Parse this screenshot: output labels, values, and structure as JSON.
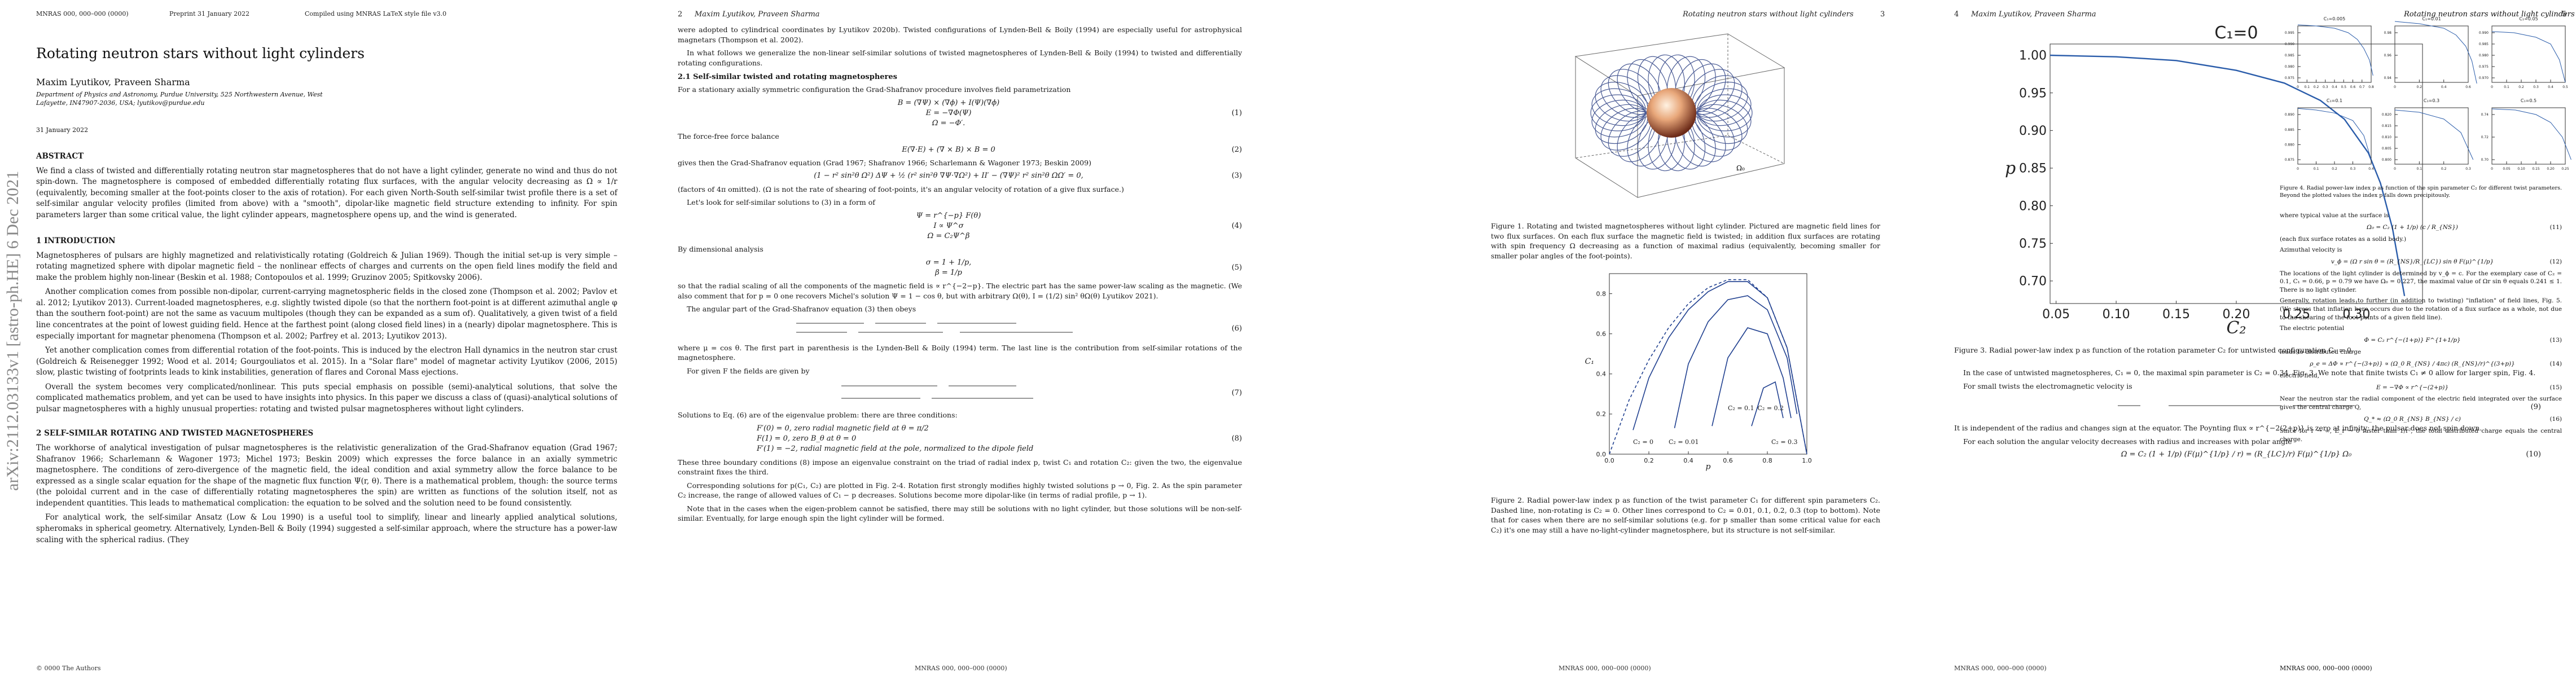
{
  "arxiv_stamp": "arXiv:2112.03133v1  [astro-ph.HE]  6 Dec 2021",
  "p1": {
    "header_left": "MNRAS 000, 000–000 (0000)",
    "header_mid": "Preprint 31 January 2022",
    "header_right": "Compiled using MNRAS LaTeX style file v3.0",
    "title": "Rotating neutron stars without light cylinders",
    "authors": "Maxim Lyutikov, Praveen Sharma",
    "affil": "Department of Physics and Astronomy, Purdue University, 525 Northwestern Avenue, West Lafayette, IN47907-2036, USA; lyutikov@purdue.edu",
    "date": "31 January 2022",
    "abstract_head": "ABSTRACT",
    "abstract": "We find a class of twisted and differentially rotating neutron star magnetospheres that do not have a light cylinder, generate no wind and thus do not spin-down. The magnetosphere is composed of embedded differentially rotating flux surfaces, with the angular velocity decreasing as Ω ∝ 1/r (equivalently, becoming smaller at the foot-points closer to the axis of rotation). For each given North-South self-similar twist profile there is a set of self-similar angular velocity profiles (limited from above) with a \"smooth\", dipolar-like magnetic field structure extending to infinity. For spin parameters larger than some critical value, the light cylinder appears, magnetosphere opens up, and the wind is generated.",
    "sec1": "1 INTRODUCTION",
    "intro": [
      "Magnetospheres of pulsars are highly magnetized and relativistically rotating (Goldreich & Julian 1969). Though the initial set-up is very simple – rotating magnetized sphere with dipolar magnetic field – the nonlinear effects of charges and currents on the open field lines modify the field and make the problem highly non-linear (Beskin et al. 1988; Contopoulos et al. 1999; Gruzinov 2005; Spitkovsky 2006).",
      "Another complication comes from possible non-dipolar, current-carrying magnetospheric fields in the closed zone (Thompson et al. 2002; Pavlov et al. 2012; Lyutikov 2013). Current-loaded magnetospheres, e.g. slightly twisted dipole (so that the northern foot-point is at different azimuthal angle φ than the southern foot-point) are not the same as vacuum multipoles (though they can be expanded as a sum of). Qualitatively, a given twist of a field line concentrates at the point of lowest guiding field. Hence at the farthest point (along closed field lines) in a (nearly) dipolar magnetosphere. This is especially important for magnetar phenomena (Thompson et al. 2002; Parfrey et al. 2013; Lyutikov 2013).",
      "Yet another complication comes from differential rotation of the foot-points. This is induced by the electron Hall dynamics in the neutron star crust (Goldreich & Reisenegger 1992; Wood et al. 2014; Gourgouliatos et al. 2015). In a \"Solar flare\" model of magnetar activity Lyutikov (2006, 2015) slow, plastic twisting of footprints leads to kink instabilities, generation of flares and Coronal Mass ejections.",
      "Overall the system becomes very complicated/nonlinear. This puts special emphasis on possible (semi)-analytical solutions, that solve the complicated mathematics problem, and yet can be used to have insights into physics. In this paper we discuss a class of (quasi)-analytical solutions of pulsar magnetospheres with a highly unusual properties: rotating and twisted pulsar magnetospheres without light cylinders."
    ],
    "sec2": "2 SELF-SIMILAR ROTATING AND TWISTED MAGNETOSPHERES",
    "sec2_text": [
      "The workhorse of analytical investigation of pulsar magnetospheres is the relativistic generalization of the Grad-Shafranov equation (Grad 1967; Shafranov 1966; Scharlemann & Wagoner 1973; Michel 1973; Beskin 2009) which expresses the force balance in an axially symmetric magnetosphere. The conditions of zero-divergence of the magnetic field, the ideal condition and axial symmetry allow the force balance to be expressed as a single scalar equation for the shape of the magnetic flux function Ψ(r, θ). There is a mathematical problem, though: the source terms (the poloidal current and in the case of differentially rotating magnetospheres the spin) are written as functions of the solution itself, not as independent quantities. This leads to mathematical complication: the equation to be solved and the solution need to be found consistently.",
      "For analytical work, the self-similar Ansatz (Low & Lou 1990) is a useful tool to simplify, linear and linearly applied analytical solutions, spheromaks in spherical geometry. Alternatively, Lynden-Bell & Boily (1994) suggested a self-similar approach, where the structure has a power-law scaling with the spherical radius. (They"
    ],
    "footer": "© 0000 The Authors"
  },
  "p2": {
    "header_num": "2",
    "header_auth": "Maxim Lyutikov, Praveen Sharma",
    "intro": [
      "were adopted to cylindrical coordinates by Lyutikov 2020b). Twisted configurations of Lynden-Bell & Boily (1994) are especially useful for astrophysical magnetars (Thompson et al. 2002).",
      "In what follows we generalize the non-linear self-similar solutions of twisted magnetospheres of Lynden-Bell & Boily (1994) to twisted and differentially rotating configurations."
    ],
    "sub21": "2.1 Self-similar twisted and rotating magnetospheres",
    "t1": "For a stationary axially symmetric configuration the Grad-Shafranov procedure involves field parametrization",
    "eq1": [
      "B = (∇Ψ) × (∇ϕ) + I(Ψ)(∇ϕ)",
      "E = −∇Φ(Ψ)",
      "Ω = −Φ′."
    ],
    "eq1n": "(1)",
    "t2": "The force-free force balance",
    "eq2": "E(∇·E) + (∇ × B) × B = 0",
    "eq2n": "(2)",
    "t3": "gives then the Grad-Shafranov equation (Grad 1967; Shafranov 1966; Scharlemann & Wagoner 1973; Beskin 2009)",
    "eq3": "(1 − r² sin²θ Ω²) ΔΨ + ½ (r² sin²θ ∇Ψ·∇Ω²) + II′ − (∇Ψ)² r² sin²θ ΩΩ′ = 0,",
    "eq3n": "(3)",
    "t4": "(factors of 4π omitted). (Ω is not the rate of shearing of foot-points, it's an angular velocity of rotation of a give flux surface.)",
    "t5": "Let's look for self-similar solutions to (3) in a form of",
    "eq4": [
      "Ψ = r^{−p} F(θ)",
      "I ∝ Ψ^σ",
      "Ω = C₂Ψ^β"
    ],
    "eq4n": "(4)",
    "t6": "By dimensional analysis",
    "eq5": [
      "σ = 1 + 1/p,",
      "β = 1/p"
    ],
    "eq5n": "(5)",
    "t7": "so that the radial scaling of all the components of the magnetic field is ∝ r^{−2−p}. The electric part has the same power-law scaling as the magnetic. (We also comment that for p = 0 one recovers Michel's solution Ψ = 1 − cos θ, but with arbitrary Ω(θ), I = (1/2) sin² θΩ(θ) Lyutikov 2021).",
    "t8": "The angular part of the Grad-Shafranov equation (3) then obeys",
    "eq6n": "(6)",
    "t9": "where μ = cos θ. The first part in parenthesis is the Lynden-Bell & Boily (1994) term. The last line is the contribution from self-similar rotations of the magnetosphere.",
    "t10": "For given F the fields are given by",
    "eq7n": "(7)",
    "t11": "Solutions to Eq. (6) are of the eigenvalue problem: there are three conditions:",
    "eq8": [
      "F′(0) = 0, zero radial magnetic field at θ = π/2",
      "F(1) = 0, zero   B_θ at θ = 0",
      "F′(1) = −2, radial magnetic field at the pole, normalized to the dipole field"
    ],
    "eq8n": "(8)",
    "t12": "These three boundary conditions (8) impose an eigenvalue constraint on the triad of radial index p, twist C₁ and rotation C₂: given the two, the eigenvalue constraint fixes the third.",
    "t13": "Corresponding solutions for p(C₁, C₂) are plotted in Fig. 2-4. Rotation first strongly modifies highly twisted solutions p → 0, Fig. 2. As the spin parameter C₂ increase, the range of allowed values of C₁ − p decreases. Solutions become more dipolar-like (in terms of radial profile, p → 1).",
    "t14": "Note that in the cases when the eigen-problem cannot be satisfied, there may still be solutions with no light cylinder, but those solutions will be non-self-similar. Eventually, for large enough spin the light cylinder will be formed.",
    "footer": "MNRAS 000, 000–000 (0000)"
  },
  "p3": {
    "header_title": "Rotating neutron stars without light cylinders",
    "header_num": "3",
    "fig1_label": "Ω₀",
    "fig1_cap": "Figure 1. Rotating and twisted magnetospheres without light cylinder. Pictured are magnetic field lines for two flux surfaces. On each flux surface the magnetic field is twisted; in addition flux surfaces are rotating with spin frequency Ω decreasing as a function of maximal radius (equivalently, becoming smaller for smaller polar angles of the foot-points).",
    "fig2_cap": "Figure 2. Radial power-law index p as function of the twist parameter C₁ for different spin parameters C₂. Dashed line, non-rotating is C₂ = 0. Other lines correspond to C₂ = 0.01, 0.1, 0.2, 0.3 (top to bottom). Note that for cases when there are no self-similar solutions (e.g. for p smaller than some critical value for each C₂) it's one may still a have no-light-cylinder magnetosphere, but its structure is not self-similar.",
    "footer": "MNRAS 000, 000–000 (0000)"
  },
  "p4": {
    "header_num": "4",
    "header_auth": "Maxim Lyutikov, Praveen Sharma",
    "fig3_cap": "Figure 3. Radial power-law index p as function of the rotation parameter C₂ for untwisted configuration C₁ = 0.",
    "t1": "In the case of untwisted magnetospheres, C₁ = 0, the maximal spin parameter is C₂ = 0.34, Fig. 3. We note that finite twists C₁ ≠ 0 allow for larger spin, Fig. 4.",
    "t2": "For small twists the electromagnetic velocity is",
    "eq9n": "(9)",
    "t3": "It is independent of the radius and changes sign at the equator. The Poynting flux ∝ r^{−2(2+p)} is zero at infinity: the pulsar does not spin down.",
    "t4": "For each solution the angular velocity decreases with radius and increases with polar angle",
    "eq10": "Ω = C₂ (1 + 1/p) (F(μ)^{1/p} / r) = (R_{LC}/r) F(μ)^{1/p} Ω₀",
    "eq10n": "(10)",
    "footer": "MNRAS 000, 000–000 (0000)"
  },
  "p5": {
    "header_title": "Rotating neutron stars without light cylinders",
    "header_num": "5",
    "fig4_cap": "Figure 4. Radial power-law index p as function of the spin parameter C₂ for different twist parameters. Beyond the plotted values the index p falls down precipitously.",
    "t1": "where typical value at the surface is",
    "eq11": "Ω₀ = C₂ (1 + 1/p) (c / R_{NS})",
    "eq11n": "(11)",
    "t2": "(each flux surface rotates as a solid body.)",
    "t3": "Azimuthal velocity is",
    "eq12": "v_ϕ = (Ω r sin θ = (R_{NS}/R_{LC}) sin θ F(μ)^{1/p}",
    "eq12n": "(12)",
    "t4": "The locations of the light cylinder is determined by v_ϕ = c. For the exemplary case of C₂ = 0.1, C₁ = 0.66, p = 0.79 we have Ω₀ = 0.227, the maximal value of Ωr sin θ equals 0.241 ≤ 1. There is no light cylinder.",
    "t5": "Generally, rotation leads to further (in addition to twisting) \"inflation\" of field lines, Fig. 5. (We stress that inflation here occurs due to the rotation of a flux surface as a whole, not due to the shearing of the foot-points of a given field line).",
    "t6": "The electric potential",
    "eq13": "Φ = C₂ r^{−(1+p)} F^{1+1/p}",
    "eq13n": "(13)",
    "t7": "leads to distributed charge",
    "eq14": "ρ_e = ΔΦ ∝ r^{−(3+p)} ∝ (Ω_0 R_{NS} / 4πc) (R_{NS}/r)^{(3+p)}",
    "eq14n": "(14)",
    "t8": "electric field,",
    "eq15": "E = −∇Φ ∝ r^{−(2+p)}",
    "eq15n": "(15)",
    "t9": "Near the neutron star the radial component of the electric field integrated over the surface gives the central charge Q,",
    "eq16": "Q_* ≈ (Ω_0 R_{NS} B_{NS} / c)",
    "eq16n": "(16)",
    "t10": "Since for r → ∞, E_r → 0 faster than 1/r², the total distributed charge equals the central charge.",
    "footer": "MNRAS 000, 000–000 (0000)"
  },
  "chart_data": [
    {
      "type": "line",
      "title": "",
      "xlabel": "p",
      "ylabel": "C₁",
      "xlim": [
        0,
        1.0
      ],
      "ylim": [
        0,
        0.9
      ],
      "xticks": [
        "0.0",
        "0.2",
        "0.4",
        "0.6",
        "0.8",
        "1.0"
      ],
      "yticks": [
        "0.0",
        "0.2",
        "0.4",
        "0.6",
        "0.8"
      ],
      "annotations": [
        "C₂ = 0",
        "C₂ = 0.01",
        "C₂ = 0.1",
        "C₂ = 0.2",
        "C₂ = 0.3"
      ],
      "series": [
        {
          "name": "C₂ = 0",
          "dashed": true,
          "x": [
            0,
            0.1,
            0.2,
            0.3,
            0.4,
            0.5,
            0.6,
            0.7,
            0.8,
            0.9,
            1.0
          ],
          "y": [
            0,
            0.27,
            0.47,
            0.63,
            0.75,
            0.83,
            0.87,
            0.87,
            0.78,
            0.53,
            0
          ]
        },
        {
          "name": "C₂ = 0.01",
          "dashed": false,
          "x": [
            0.12,
            0.2,
            0.3,
            0.4,
            0.5,
            0.6,
            0.7,
            0.8,
            0.9,
            1.0
          ],
          "y": [
            0.12,
            0.38,
            0.58,
            0.72,
            0.81,
            0.86,
            0.86,
            0.78,
            0.53,
            0
          ]
        },
        {
          "name": "C₂ = 0.1",
          "dashed": false,
          "x": [
            0.33,
            0.4,
            0.5,
            0.6,
            0.7,
            0.8,
            0.9,
            0.95
          ],
          "y": [
            0.13,
            0.45,
            0.66,
            0.77,
            0.79,
            0.72,
            0.48,
            0.2
          ]
        },
        {
          "name": "C₂ = 0.2",
          "dashed": false,
          "x": [
            0.52,
            0.6,
            0.7,
            0.8,
            0.88,
            0.92
          ],
          "y": [
            0.14,
            0.48,
            0.63,
            0.6,
            0.38,
            0.18
          ]
        },
        {
          "name": "C₂ = 0.3",
          "dashed": false,
          "x": [
            0.72,
            0.78,
            0.84,
            0.88
          ],
          "y": [
            0.14,
            0.33,
            0.36,
            0.18
          ]
        }
      ]
    },
    {
      "type": "line",
      "title": "C₁=0",
      "xlabel": "C₂",
      "ylabel": "p",
      "xlim": [
        0.045,
        0.355
      ],
      "ylim": [
        0.67,
        1.015
      ],
      "xticks": [
        "0.05",
        "0.10",
        "0.15",
        "0.20",
        "0.25",
        "0.30"
      ],
      "yticks": [
        "0.70",
        "0.75",
        "0.80",
        "0.85",
        "0.90",
        "0.95",
        "1.00"
      ],
      "series": [
        {
          "name": "",
          "x": [
            0.045,
            0.1,
            0.15,
            0.2,
            0.24,
            0.27,
            0.29,
            0.31,
            0.32,
            0.33,
            0.34
          ],
          "y": [
            1.0,
            0.998,
            0.993,
            0.98,
            0.963,
            0.94,
            0.915,
            0.87,
            0.83,
            0.77,
            0.68
          ]
        }
      ]
    },
    [
      {
        "type": "line",
        "title": "C₁=0.005",
        "xticks": [
          "0",
          "0.1",
          "0.2",
          "0.3",
          "0.4",
          "0.5",
          "0.6",
          "0.7",
          "0.8"
        ],
        "yticks": [
          "0.975",
          "0.980",
          "0.985",
          "0.990",
          "0.995"
        ],
        "x": [
          0,
          0.2,
          0.4,
          0.55,
          0.65,
          0.72,
          0.78,
          0.82
        ],
        "y": [
          0.9985,
          0.998,
          0.997,
          0.995,
          0.992,
          0.988,
          0.983,
          0.976
        ]
      },
      {
        "type": "line",
        "title": "C₁=0.01",
        "xticks": [
          "0",
          "0.2",
          "0.4",
          "0.6"
        ],
        "yticks": [
          "0.94",
          "0.96",
          "0.98"
        ],
        "x": [
          0,
          0.2,
          0.4,
          0.5,
          0.58,
          0.63,
          0.67
        ],
        "y": [
          0.99,
          0.988,
          0.984,
          0.978,
          0.968,
          0.955,
          0.935
        ]
      },
      {
        "type": "line",
        "title": "C₁=0.05",
        "xticks": [
          "0",
          "0.1",
          "0.2",
          "0.3",
          "0.4",
          "0.5"
        ],
        "yticks": [
          "0.970",
          "0.975",
          "0.980",
          "0.985",
          "0.990"
        ],
        "x": [
          0,
          0.15,
          0.3,
          0.4,
          0.46,
          0.5
        ],
        "y": [
          0.9905,
          0.99,
          0.988,
          0.985,
          0.978,
          0.968
        ]
      },
      {
        "type": "line",
        "title": "C₁=0.1",
        "xticks": [
          "0",
          "0.1",
          "0.2",
          "0.3",
          "0.4"
        ],
        "yticks": [
          "0.875",
          "0.880",
          "0.885",
          "0.890"
        ],
        "x": [
          0,
          0.1,
          0.2,
          0.3,
          0.36,
          0.4
        ],
        "y": [
          0.892,
          0.8915,
          0.8905,
          0.888,
          0.883,
          0.875
        ]
      },
      {
        "type": "line",
        "title": "C₁=0.3",
        "xticks": [
          "0",
          "0.1",
          "0.2",
          "0.3"
        ],
        "yticks": [
          "0.800",
          "0.805",
          "0.810",
          "0.815",
          "0.820"
        ],
        "x": [
          0,
          0.1,
          0.2,
          0.27,
          0.32
        ],
        "y": [
          0.822,
          0.821,
          0.818,
          0.812,
          0.8
        ]
      },
      {
        "type": "line",
        "title": "C₁=0.5",
        "xticks": [
          "0",
          "0.05",
          "0.10",
          "0.15",
          "0.20",
          "0.25"
        ],
        "yticks": [
          "0.70",
          "0.72",
          "0.74"
        ],
        "x": [
          0,
          0.08,
          0.15,
          0.2,
          0.24,
          0.27
        ],
        "y": [
          0.745,
          0.744,
          0.74,
          0.733,
          0.72,
          0.7
        ]
      }
    ]
  ]
}
